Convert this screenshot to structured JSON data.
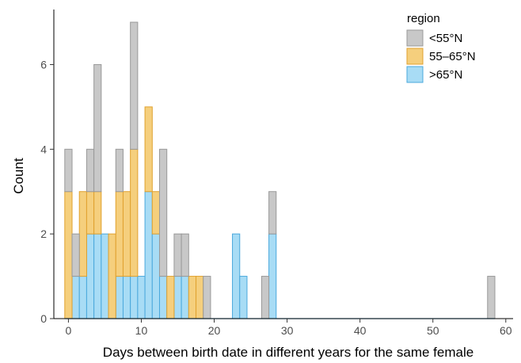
{
  "chart_data": {
    "type": "bar",
    "subtype": "stacked-histogram",
    "xlabel": "Days between birth date in different years for the same female",
    "ylabel": "Count",
    "xlim": [
      -2,
      61
    ],
    "ylim": [
      0,
      7.3
    ],
    "x_ticks": [
      0,
      10,
      20,
      30,
      40,
      50,
      60
    ],
    "y_ticks": [
      0,
      2,
      4,
      6
    ],
    "bins": [
      0,
      1,
      2,
      3,
      4,
      5,
      6,
      7,
      8,
      9,
      10,
      11,
      12,
      13,
      14,
      15,
      16,
      17,
      18,
      19,
      20,
      21,
      22,
      23,
      24,
      25,
      26,
      27,
      28,
      29,
      58
    ],
    "legend": {
      "title": "region",
      "position": "top-right",
      "entries": [
        "<55°N",
        "55–65°N",
        ">65°N"
      ]
    },
    "series": [
      {
        "name": ">65°N",
        "color_fill": "#a8dcf5",
        "color_line": "#4aa8dc",
        "values": [
          0,
          1,
          1,
          2,
          2,
          2,
          0,
          1,
          1,
          1,
          1,
          3,
          2,
          1,
          0,
          1,
          1,
          0,
          0,
          0,
          0,
          0,
          0,
          2,
          1,
          0,
          0,
          0,
          2,
          0,
          0
        ]
      },
      {
        "name": "55–65°N",
        "color_fill": "#f5cf7d",
        "color_line": "#e0a12e",
        "values": [
          3,
          0,
          2,
          1,
          1,
          0,
          2,
          2,
          2,
          3,
          0,
          2,
          1,
          0,
          1,
          0,
          0,
          1,
          1,
          0,
          0,
          0,
          0,
          0,
          0,
          0,
          0,
          0,
          0,
          0,
          0
        ]
      },
      {
        "name": "<55°N",
        "color_fill": "#c8c8c8",
        "color_line": "#999999",
        "values": [
          1,
          1,
          0,
          1,
          3,
          0,
          0,
          1,
          0,
          3,
          0,
          0,
          0,
          3,
          0,
          1,
          1,
          0,
          0,
          1,
          0,
          0,
          0,
          0,
          0,
          0,
          0,
          1,
          1,
          0,
          1
        ]
      }
    ]
  }
}
